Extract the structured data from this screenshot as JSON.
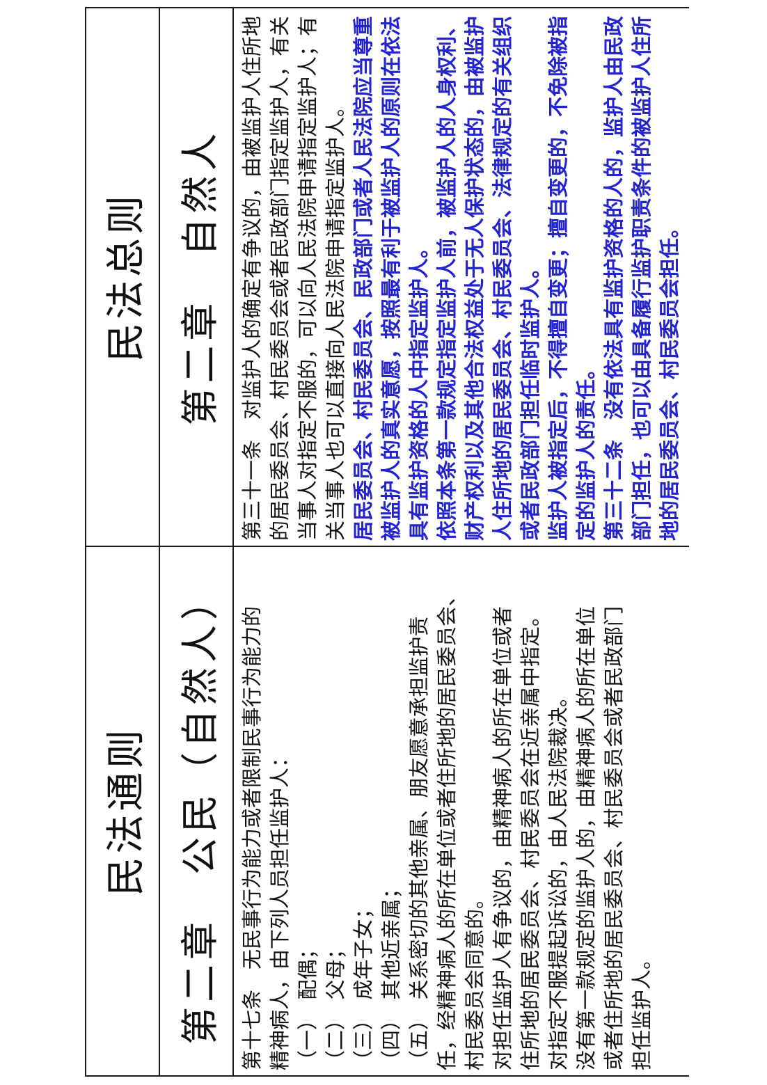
{
  "colors": {
    "text_black": "#111111",
    "highlight_blue": "#2424cf",
    "border": "#1a1a1a"
  },
  "left_column": {
    "title": "民法通则",
    "chapter": "第二章　公民（自然人）",
    "body_lines": [
      {
        "text": "第十七条　无民事行为能力或者限制民事行为能力的",
        "style": "black"
      },
      {
        "text": "精神病人，由下列人员担任监护人：",
        "style": "black"
      },
      {
        "text": "（一）　配偶；",
        "style": "black"
      },
      {
        "text": "（二）　父母；",
        "style": "black"
      },
      {
        "text": "（三）　成年子女；",
        "style": "black"
      },
      {
        "text": "（四）　其他近亲属；",
        "style": "black"
      },
      {
        "text": "（五）　关系密切的其他亲属、朋友愿意承担监护责",
        "style": "black"
      },
      {
        "text": "任，经精神病人的所在单位或者住所地的居民委员会、",
        "style": "black"
      },
      {
        "text": "村民委员会同意的。",
        "style": "black"
      },
      {
        "text": "对担任监护人有争议的，由精神病人的所在单位或者",
        "style": "black"
      },
      {
        "text": "住所地的居民委员会、村民委员会在近亲属中指定。",
        "style": "black"
      },
      {
        "text": "对指定不服提起诉讼的，由人民法院裁决。",
        "style": "black"
      },
      {
        "text": "没有第一款规定的监护人的，由精神病人的所在单位",
        "style": "black"
      },
      {
        "text": "或者住所地的居民委员会、村民委员会或者民政部门",
        "style": "black"
      },
      {
        "text": "担任监护人。",
        "style": "black"
      }
    ]
  },
  "right_column": {
    "title": "民法总则",
    "chapter": "第二章　自然人",
    "body_lines": [
      {
        "text": "第三十一条　对监护人的确定有争议的，由被监护人住所地",
        "style": "black"
      },
      {
        "text": "的居民委员会、村民委员会或者民政部门指定监护人，有关",
        "style": "black"
      },
      {
        "text": "当事人对指定不服的，可以向人民法院申请指定监护人；有",
        "style": "black"
      },
      {
        "text": "关当事人也可以直接向人民法院申请指定监护人。",
        "style": "black"
      },
      {
        "text": "居民委员会、村民委员会、民政部门或者人民法院应当尊重",
        "style": "blue"
      },
      {
        "text": "被监护人的真实意愿，按照最有利于被监护人的原则在依法",
        "style": "blue"
      },
      {
        "text": "具有监护资格的人中指定监护人。",
        "style": "blue"
      },
      {
        "text": "依照本条第一款规定指定监护人前，被监护人的人身权利、",
        "style": "blue"
      },
      {
        "text": "财产权利以及其他合法权益处于无人保护状态的，由被监护",
        "style": "blue"
      },
      {
        "text": "人住所地的居民委员会、村民委员会、法律规定的有关组织",
        "style": "blue"
      },
      {
        "text": "或者民政部门担任临时监护人。",
        "style": "blue"
      },
      {
        "text": "监护人被指定后，不得擅自变更；擅自变更的，不免除被指",
        "style": "blue"
      },
      {
        "text": "定的监护人的责任。",
        "style": "blue"
      },
      {
        "text": "第三十二条　没有依法具有监护资格的人的，监护人由民政",
        "style": "blue"
      },
      {
        "text": "部门担任，也可以由具备履行监护职责条件的被监护人住所",
        "style": "blue"
      },
      {
        "text": "地的居民委员会、村民委员会担任。",
        "style": "blue"
      }
    ]
  }
}
